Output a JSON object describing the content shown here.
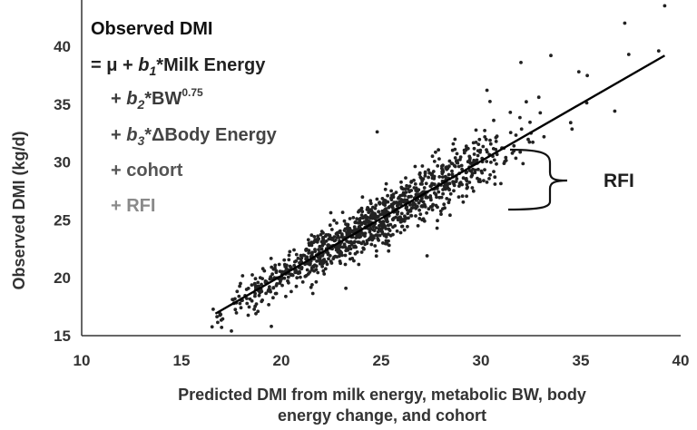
{
  "chart_data": {
    "type": "scatter",
    "xlabel_lines": [
      "Predicted DMI from milk energy, metabolic BW, body",
      "energy change, and cohort"
    ],
    "ylabel": "Observed DMI (kg/d)",
    "xlim": [
      10,
      40
    ],
    "ylim": [
      15,
      44
    ],
    "xticks": [
      "10",
      "15",
      "20",
      "25",
      "30",
      "35",
      "40"
    ],
    "yticks": [
      "15",
      "20",
      "25",
      "30",
      "35",
      "40"
    ],
    "grid": false,
    "legend": "none",
    "regression_line": {
      "x": [
        16.7,
        39.2
      ],
      "y": [
        16.9,
        39.2
      ]
    },
    "point_cloud": {
      "count": 1100,
      "x_range": [
        16.5,
        39.5
      ],
      "residual_sd": 1.1,
      "x_mean": 24.5,
      "x_sd": 3.6
    },
    "outliers": [
      {
        "x": 39.2,
        "y": 43.5
      },
      {
        "x": 37.2,
        "y": 42.0
      },
      {
        "x": 38.9,
        "y": 39.6
      },
      {
        "x": 37.4,
        "y": 39.3
      },
      {
        "x": 34.9,
        "y": 37.8
      },
      {
        "x": 33.5,
        "y": 39.2
      },
      {
        "x": 32.0,
        "y": 38.6
      },
      {
        "x": 30.3,
        "y": 36.2
      },
      {
        "x": 36.7,
        "y": 34.4
      },
      {
        "x": 24.8,
        "y": 32.6
      },
      {
        "x": 17.5,
        "y": 15.4
      },
      {
        "x": 19.5,
        "y": 15.8
      },
      {
        "x": 27.3,
        "y": 21.9
      }
    ],
    "equation_lines": [
      {
        "parts": [
          {
            "t": "Observed DMI"
          }
        ],
        "color": "#111111"
      },
      {
        "parts": [
          {
            "t": "= μ + "
          },
          {
            "t": "b",
            "style": "italic"
          },
          {
            "t": "1",
            "style": "italic-sub"
          },
          {
            "t": "*Milk Energy"
          }
        ],
        "color": "#222222"
      },
      {
        "parts": [
          {
            "t": "+ "
          },
          {
            "t": "b",
            "style": "italic"
          },
          {
            "t": "2",
            "style": "italic-sub"
          },
          {
            "t": "*BW"
          },
          {
            "t": "0.75",
            "style": "sup"
          }
        ],
        "color": "#3a3a3a"
      },
      {
        "parts": [
          {
            "t": "+ "
          },
          {
            "t": "b",
            "style": "italic"
          },
          {
            "t": "3",
            "style": "italic-sub"
          },
          {
            "t": "*ΔBody Energy"
          }
        ],
        "color": "#444444"
      },
      {
        "parts": [
          {
            "t": "+ cohort"
          }
        ],
        "color": "#555555"
      },
      {
        "parts": [
          {
            "t": "+ RFI"
          }
        ],
        "color": "#8a8a8a"
      }
    ],
    "annotation": {
      "text": "RFI"
    },
    "colors": {
      "points": "#222222",
      "line": "#000000",
      "axis": "#333333"
    }
  }
}
